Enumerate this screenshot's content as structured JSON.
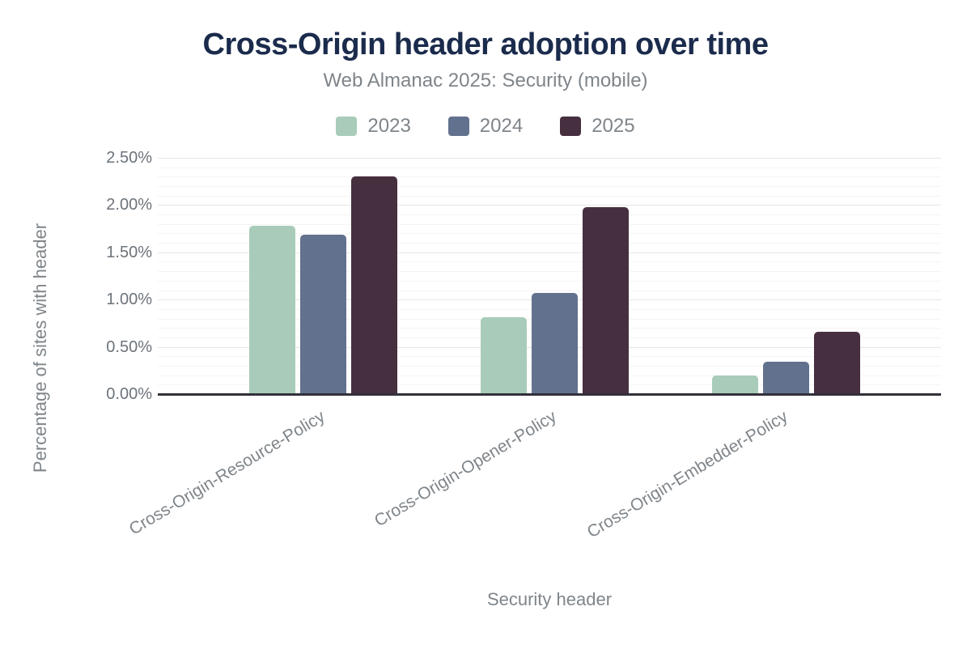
{
  "title": "Cross-Origin header adoption over time",
  "subtitle": "Web Almanac 2025: Security (mobile)",
  "colors": {
    "title": "#1b2b4c",
    "text": "#7f858a",
    "tick": "#6c737a",
    "axis": "#33303b",
    "grid_minor": "#f4f4f4",
    "grid_major": "#e6e6e6",
    "background": "#ffffff"
  },
  "legend": {
    "entries": [
      "2023",
      "2024",
      "2025"
    ]
  },
  "chart_data": {
    "type": "bar",
    "title": "Cross-Origin header adoption over time",
    "subtitle": "Web Almanac 2025: Security (mobile)",
    "categories": [
      "Cross-Origin-Resource-Policy",
      "Cross-Origin-Opener-Policy",
      "Cross-Origin-Embedder-Policy"
    ],
    "series": [
      {
        "name": "2023",
        "color": "#a8ccb9",
        "values": [
          1.78,
          0.81,
          0.2
        ]
      },
      {
        "name": "2024",
        "color": "#62718d",
        "values": [
          1.69,
          1.07,
          0.34
        ]
      },
      {
        "name": "2025",
        "color": "#462f3f",
        "values": [
          2.3,
          1.98,
          0.66
        ]
      }
    ],
    "xlabel": "Security header",
    "ylabel": "Percentage of sites with header",
    "ylim": [
      0,
      2.5
    ],
    "ytick_step": 0.5,
    "ytick_minor_step": 0.1,
    "ytick_labels": [
      "0.00%",
      "0.50%",
      "1.00%",
      "1.50%",
      "2.00%",
      "2.50%"
    ],
    "legend_position": "top",
    "grid": true
  }
}
